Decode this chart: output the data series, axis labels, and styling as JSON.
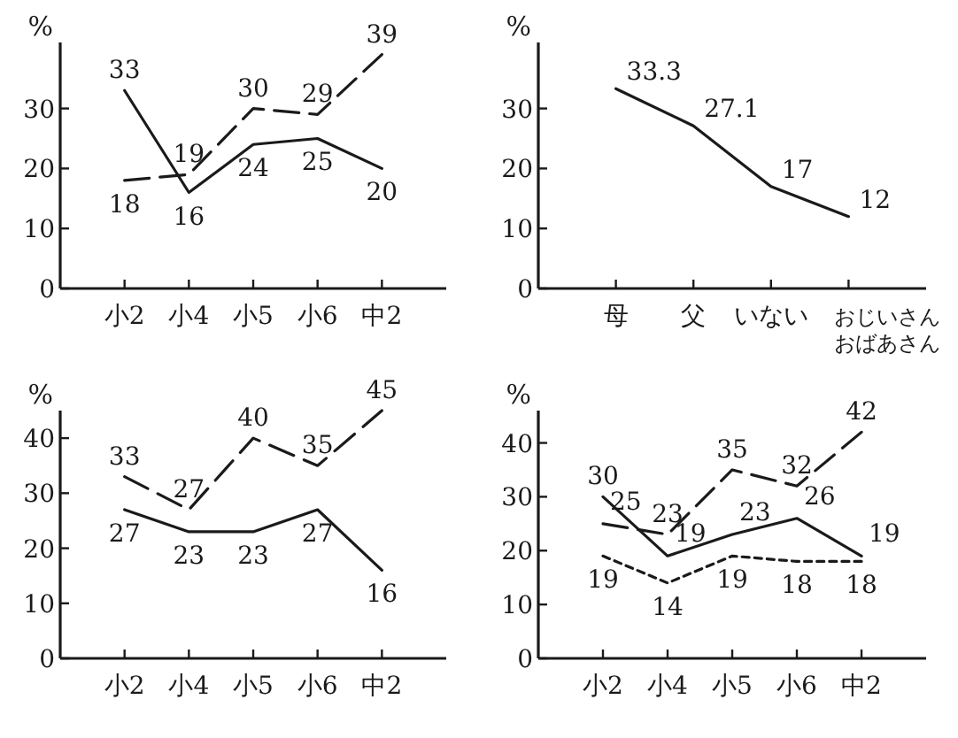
{
  "chart_data": [
    {
      "type": "line",
      "ylabel": "%",
      "categories": [
        "小2",
        "小4",
        "小5",
        "小6",
        "中2"
      ],
      "ylim": [
        0,
        41
      ],
      "yticks": [
        0,
        10,
        20,
        30
      ],
      "data_labels": true,
      "marker": "none",
      "grid": false,
      "legend": false,
      "series": [
        {
          "color": "#1a1a1a",
          "line_style": "solid",
          "values": [
            33,
            16,
            24,
            25,
            20
          ]
        },
        {
          "color": "#1a1a1a",
          "line_style": "dashed",
          "values": [
            18,
            19,
            30,
            29,
            39
          ]
        }
      ]
    },
    {
      "type": "line",
      "ylabel": "%",
      "categories": [
        "母",
        "父",
        "いない",
        "おじいさんおばあさん"
      ],
      "ylim": [
        0,
        41
      ],
      "yticks": [
        0,
        10,
        20,
        30
      ],
      "data_labels": true,
      "marker": "none",
      "grid": false,
      "legend": false,
      "series": [
        {
          "color": "#1a1a1a",
          "line_style": "solid",
          "values": [
            33.3,
            27.1,
            17,
            12
          ]
        }
      ]
    },
    {
      "type": "line",
      "ylabel": "%",
      "categories": [
        "小2",
        "小4",
        "小5",
        "小6",
        "中2"
      ],
      "ylim": [
        0,
        45
      ],
      "yticks": [
        0,
        10,
        20,
        30,
        40
      ],
      "data_labels": true,
      "marker": "none",
      "grid": false,
      "legend": false,
      "series": [
        {
          "color": "#1a1a1a",
          "line_style": "solid",
          "values": [
            27,
            23,
            23,
            27,
            16
          ]
        },
        {
          "color": "#1a1a1a",
          "line_style": "dashed",
          "values": [
            33,
            27,
            40,
            35,
            45
          ]
        }
      ]
    },
    {
      "type": "line",
      "ylabel": "%",
      "categories": [
        "小2",
        "小4",
        "小5",
        "小6",
        "中2"
      ],
      "ylim": [
        0,
        46
      ],
      "yticks": [
        0,
        10,
        20,
        30,
        40
      ],
      "data_labels": true,
      "marker": "none",
      "grid": false,
      "legend": false,
      "series": [
        {
          "color": "#1a1a1a",
          "line_style": "solid",
          "values": [
            30,
            19,
            23,
            26,
            19
          ]
        },
        {
          "color": "#1a1a1a",
          "line_style": "dashed",
          "values": [
            25,
            23,
            35,
            32,
            42
          ]
        },
        {
          "color": "#1a1a1a",
          "line_style": "dotted",
          "values": [
            19,
            14,
            19,
            18,
            18
          ]
        }
      ]
    }
  ]
}
